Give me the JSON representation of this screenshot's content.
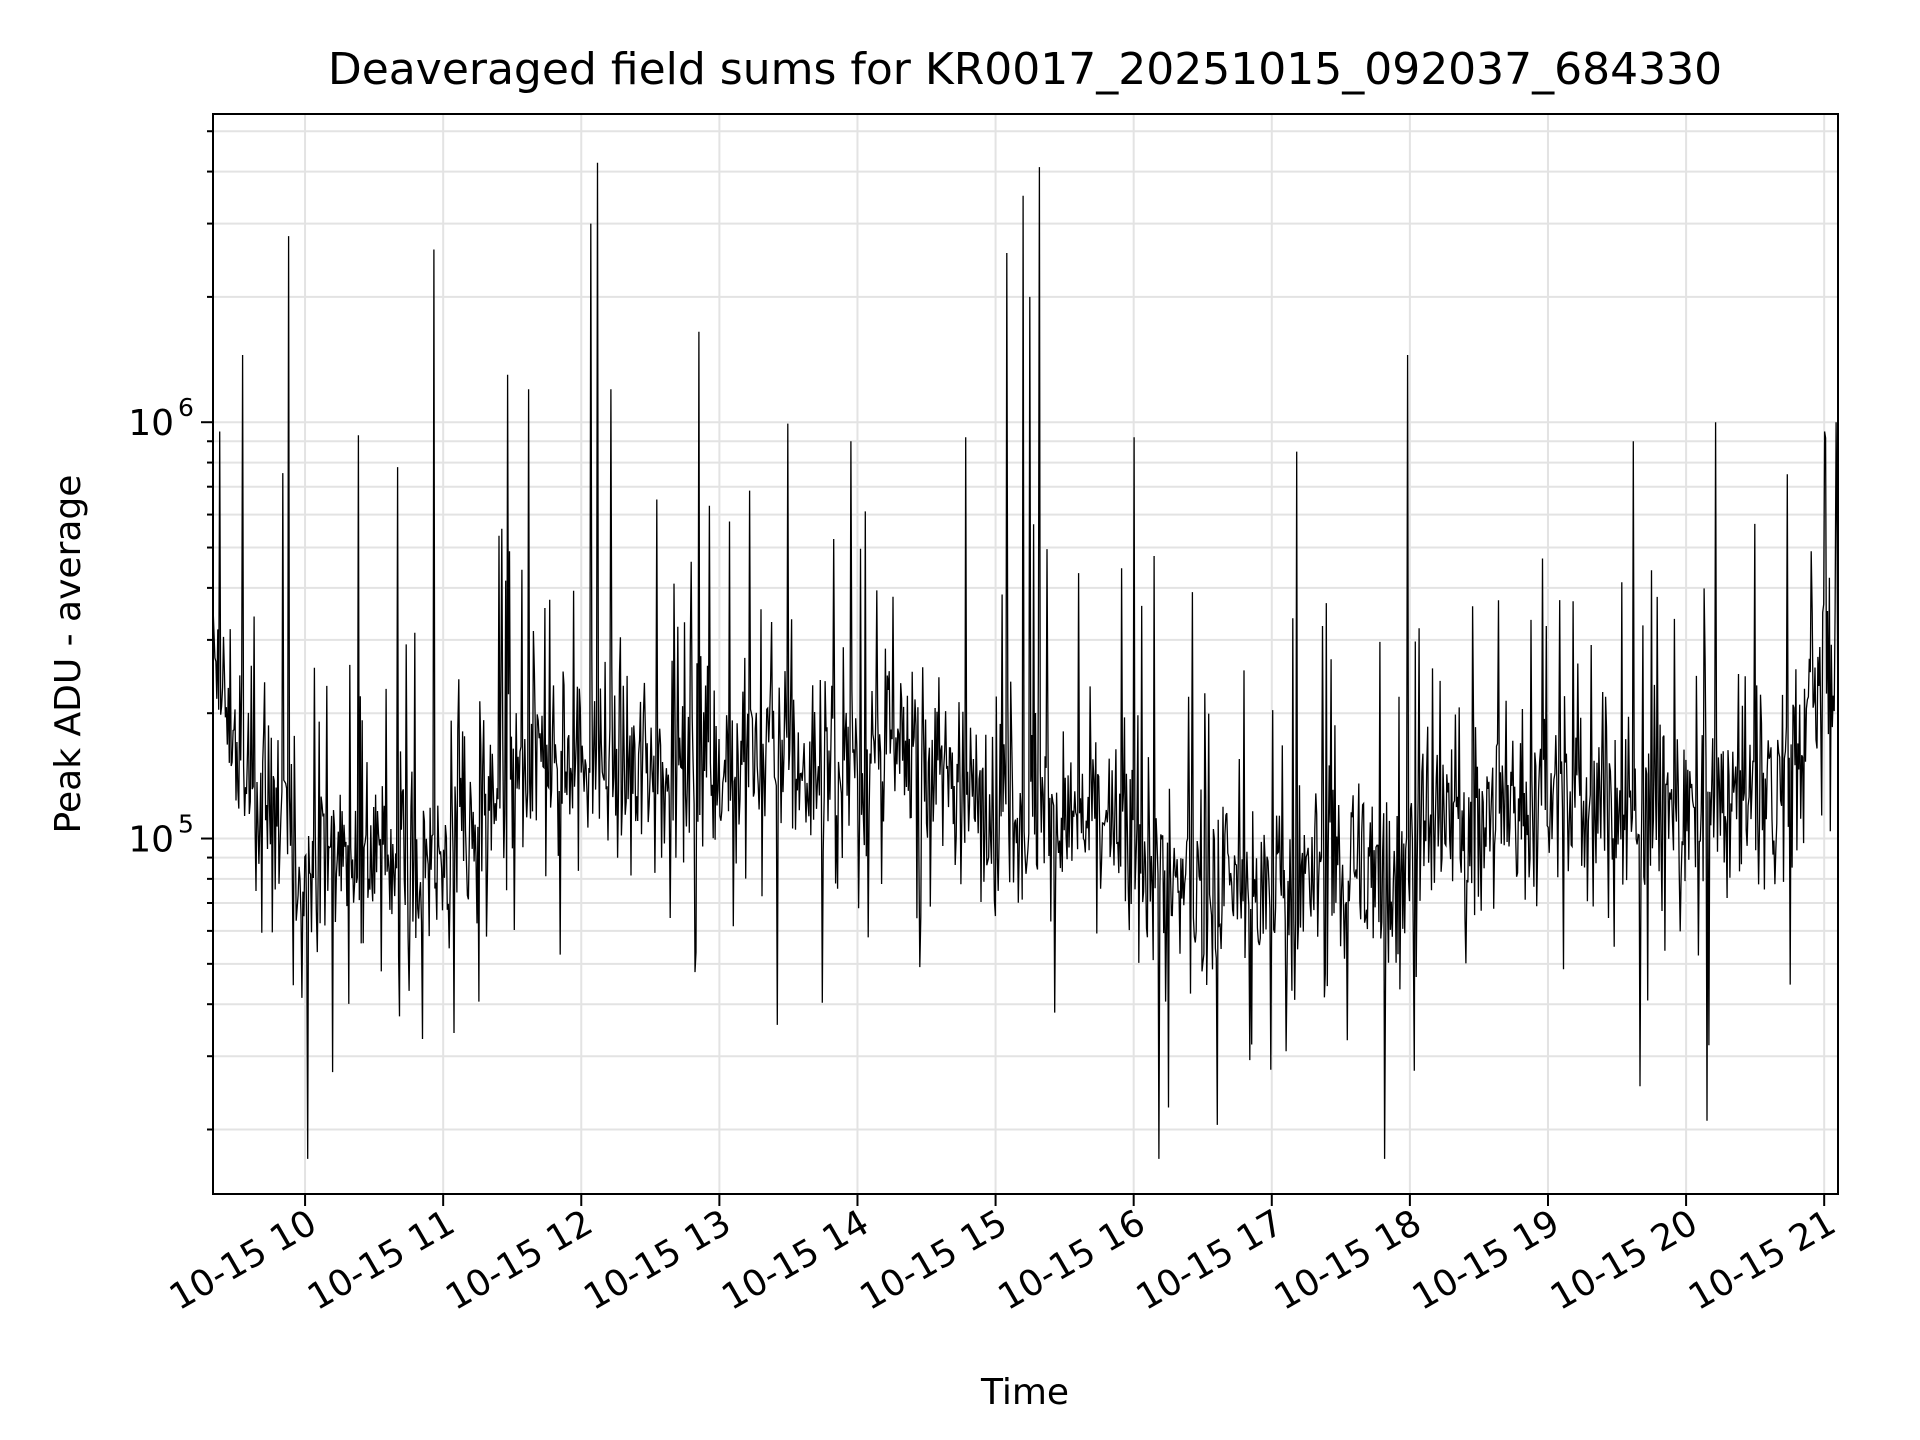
{
  "chart_data": {
    "type": "line",
    "title": "Deaveraged field sums for KR0017_20251015_092037_684330",
    "xlabel": "Time",
    "ylabel": "Peak ADU - average",
    "yscale": "log",
    "xlim": [
      "10-15 09:20",
      "10-15 21:06"
    ],
    "ylim": [
      14000,
      5500000
    ],
    "grid": true,
    "line_color": "#000000",
    "x_ticks": [
      "10-15 10",
      "10-15 11",
      "10-15 12",
      "10-15 13",
      "10-15 14",
      "10-15 15",
      "10-15 16",
      "10-15 17",
      "10-15 18",
      "10-15 19",
      "10-15 20",
      "10-15 21"
    ],
    "y_ticks": [
      {
        "base": "10",
        "exp": "5",
        "value": 100000
      },
      {
        "base": "10",
        "exp": "6",
        "value": 1000000
      }
    ],
    "series": [
      {
        "x": [
          "10-15 09:20",
          "10-15 09:35",
          "10-15 09:50",
          "10-15 10:00",
          "10-15 10:15",
          "10-15 10:30",
          "10-15 10:45",
          "10-15 11:00",
          "10-15 11:15",
          "10-15 11:30",
          "10-15 11:45",
          "10-15 12:00",
          "10-15 12:15",
          "10-15 12:30",
          "10-15 12:45",
          "10-15 13:00",
          "10-15 13:15",
          "10-15 13:30",
          "10-15 13:45",
          "10-15 14:00",
          "10-15 14:15",
          "10-15 14:30",
          "10-15 14:45",
          "10-15 15:00",
          "10-15 15:15",
          "10-15 15:30",
          "10-15 15:45",
          "10-15 16:00",
          "10-15 16:15",
          "10-15 16:30",
          "10-15 16:45",
          "10-15 17:00",
          "10-15 17:15",
          "10-15 17:30",
          "10-15 17:45",
          "10-15 18:00",
          "10-15 18:15",
          "10-15 18:30",
          "10-15 18:45",
          "10-15 19:00",
          "10-15 19:15",
          "10-15 19:30",
          "10-15 19:45",
          "10-15 20:00",
          "10-15 20:15",
          "10-15 20:30",
          "10-15 20:45",
          "10-15 21:00",
          "10-15 21:06"
        ],
        "y": [
          250000,
          140000,
          110000,
          85000,
          95000,
          90000,
          90000,
          85000,
          100000,
          130000,
          150000,
          160000,
          150000,
          150000,
          155000,
          165000,
          160000,
          150000,
          145000,
          155000,
          160000,
          150000,
          140000,
          125000,
          120000,
          115000,
          105000,
          95000,
          80000,
          75000,
          75000,
          70000,
          80000,
          85000,
          85000,
          95000,
          110000,
          115000,
          120000,
          125000,
          120000,
          115000,
          115000,
          120000,
          125000,
          130000,
          150000,
          250000,
          350000
        ]
      }
    ],
    "peaks": [
      {
        "x": "10-15 09:23",
        "y": 950000
      },
      {
        "x": "10-15 09:33",
        "y": 1450000
      },
      {
        "x": "10-15 09:53",
        "y": 2800000
      },
      {
        "x": "10-15 10:01",
        "y": 17000
      },
      {
        "x": "10-15 10:23",
        "y": 930000
      },
      {
        "x": "10-15 10:40",
        "y": 780000
      },
      {
        "x": "10-15 10:56",
        "y": 2600000
      },
      {
        "x": "10-15 11:28",
        "y": 1300000
      },
      {
        "x": "10-15 11:37",
        "y": 1200000
      },
      {
        "x": "10-15 12:04",
        "y": 3000000
      },
      {
        "x": "10-15 12:07",
        "y": 4200000
      },
      {
        "x": "10-15 12:13",
        "y": 1200000
      },
      {
        "x": "10-15 12:51",
        "y": 1650000
      },
      {
        "x": "10-15 13:57",
        "y": 900000
      },
      {
        "x": "10-15 14:47",
        "y": 920000
      },
      {
        "x": "10-15 15:05",
        "y": 2550000
      },
      {
        "x": "10-15 15:12",
        "y": 3500000
      },
      {
        "x": "10-15 15:15",
        "y": 2000000
      },
      {
        "x": "10-15 15:19",
        "y": 4100000
      },
      {
        "x": "10-15 16:00",
        "y": 920000
      },
      {
        "x": "10-15 16:11",
        "y": 17000
      },
      {
        "x": "10-15 17:11",
        "y": 850000
      },
      {
        "x": "10-15 17:49",
        "y": 17000
      },
      {
        "x": "10-15 17:59",
        "y": 1450000
      },
      {
        "x": "10-15 19:37",
        "y": 900000
      },
      {
        "x": "10-15 20:09",
        "y": 21000
      },
      {
        "x": "10-15 20:13",
        "y": 1000000
      },
      {
        "x": "10-15 20:44",
        "y": 750000
      },
      {
        "x": "10-15 21:00",
        "y": 950000
      },
      {
        "x": "10-15 21:05",
        "y": 1000000
      }
    ]
  }
}
